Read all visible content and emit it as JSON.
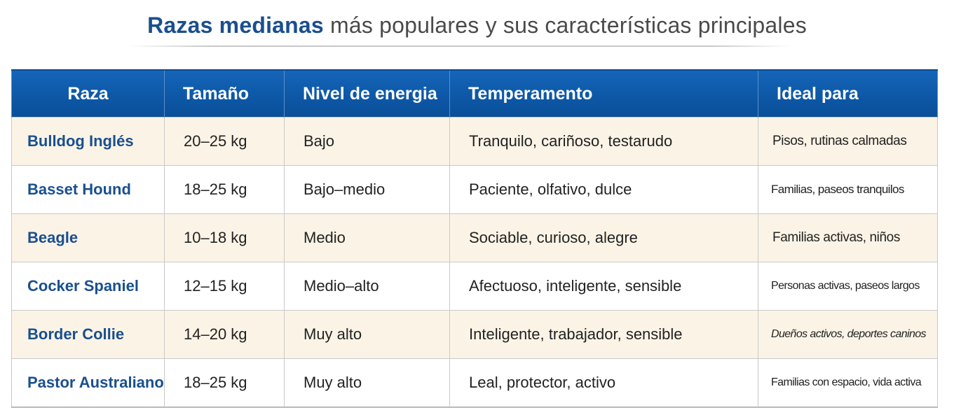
{
  "title": {
    "strong": "Razas medianas",
    "rest": " más populares y sus características principales"
  },
  "table": {
    "headers": [
      "Raza",
      "Tamaño",
      "Nivel de energia",
      "Temperamento",
      "Ideal para"
    ],
    "rows": [
      [
        "Bulldog Inglés",
        "20–25 kg",
        "Bajo",
        "Tranquilo, cariñoso, testarudo",
        "Pisos, rutinas calmadas"
      ],
      [
        "Basset Hound",
        "18–25 kg",
        "Bajo–medio",
        "Paciente, olfativo, dulce",
        "Familias, paseos tranquilos"
      ],
      [
        "Beagle",
        "10–18 kg",
        "Medio",
        "Sociable, curioso, alegre",
        "Familias activas, niños"
      ],
      [
        "Cocker Spaniel",
        "12–15 kg",
        "Medio–alto",
        "Afectuoso, inteligente, sensible",
        "Personas activas, paseos largos"
      ],
      [
        "Border Collie",
        "14–20 kg",
        "Muy alto",
        "Inteligente, trabajador, sensible",
        "Dueños activos, deportes caninos"
      ],
      [
        "Pastor Australiano",
        "18–25 kg",
        "Muy alto",
        "Leal, protector, activo",
        "Familias con espacio, vida activa"
      ]
    ]
  }
}
